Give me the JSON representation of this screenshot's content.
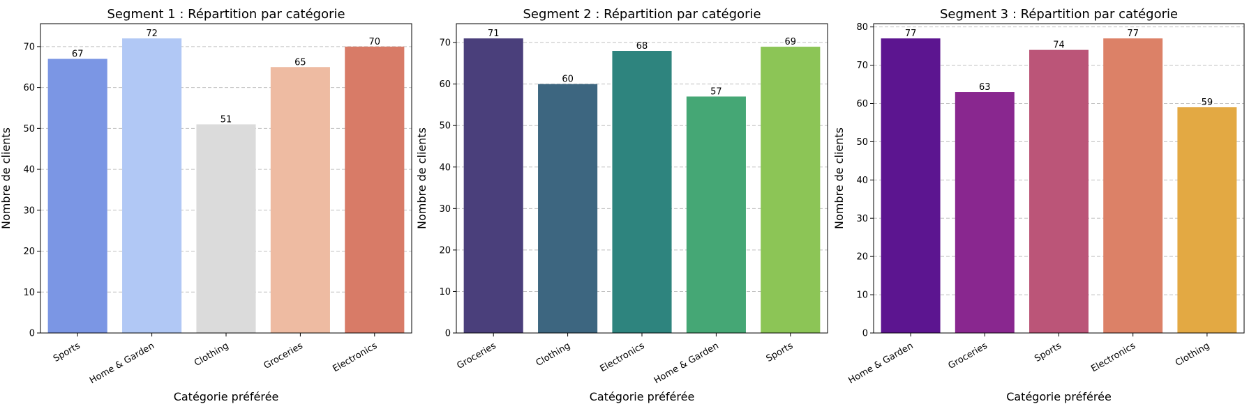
{
  "chart_data": [
    {
      "type": "bar",
      "title": "Segment 1 : Répartition par catégorie",
      "xlabel": "Catégorie préférée",
      "ylabel": "Nombre de clients",
      "categories": [
        "Sports",
        "Home & Garden",
        "Clothing",
        "Groceries",
        "Electronics"
      ],
      "values": [
        67,
        72,
        51,
        65,
        70
      ],
      "colors": [
        "#7b96e4",
        "#b1c8f5",
        "#dbdbdb",
        "#eebba2",
        "#d87b67"
      ],
      "ylim": [
        0,
        75.6
      ],
      "yticks": [
        0,
        10,
        20,
        30,
        40,
        50,
        60,
        70
      ],
      "grid": "y"
    },
    {
      "type": "bar",
      "title": "Segment 2 : Répartition par catégorie",
      "xlabel": "Catégorie préférée",
      "ylabel": "Nombre de clients",
      "categories": [
        "Groceries",
        "Clothing",
        "Electronics",
        "Home & Garden",
        "Sports"
      ],
      "values": [
        71,
        60,
        68,
        57,
        69
      ],
      "colors": [
        "#4a3f7b",
        "#3d6680",
        "#2e847e",
        "#45a775",
        "#8cc556"
      ],
      "ylim": [
        0,
        74.55
      ],
      "yticks": [
        0,
        10,
        20,
        30,
        40,
        50,
        60,
        70
      ],
      "grid": "y"
    },
    {
      "type": "bar",
      "title": "Segment 3 : Répartition par catégorie",
      "xlabel": "Catégorie préférée",
      "ylabel": "Nombre de clients",
      "categories": [
        "Home & Garden",
        "Groceries",
        "Sports",
        "Electronics",
        "Clothing"
      ],
      "values": [
        77,
        63,
        74,
        77,
        59
      ],
      "colors": [
        "#5c1590",
        "#89278f",
        "#bb5578",
        "#dc8167",
        "#e3a943"
      ],
      "ylim": [
        0,
        80.85
      ],
      "yticks": [
        0,
        10,
        20,
        30,
        40,
        50,
        60,
        70,
        80
      ],
      "grid": "y"
    }
  ]
}
